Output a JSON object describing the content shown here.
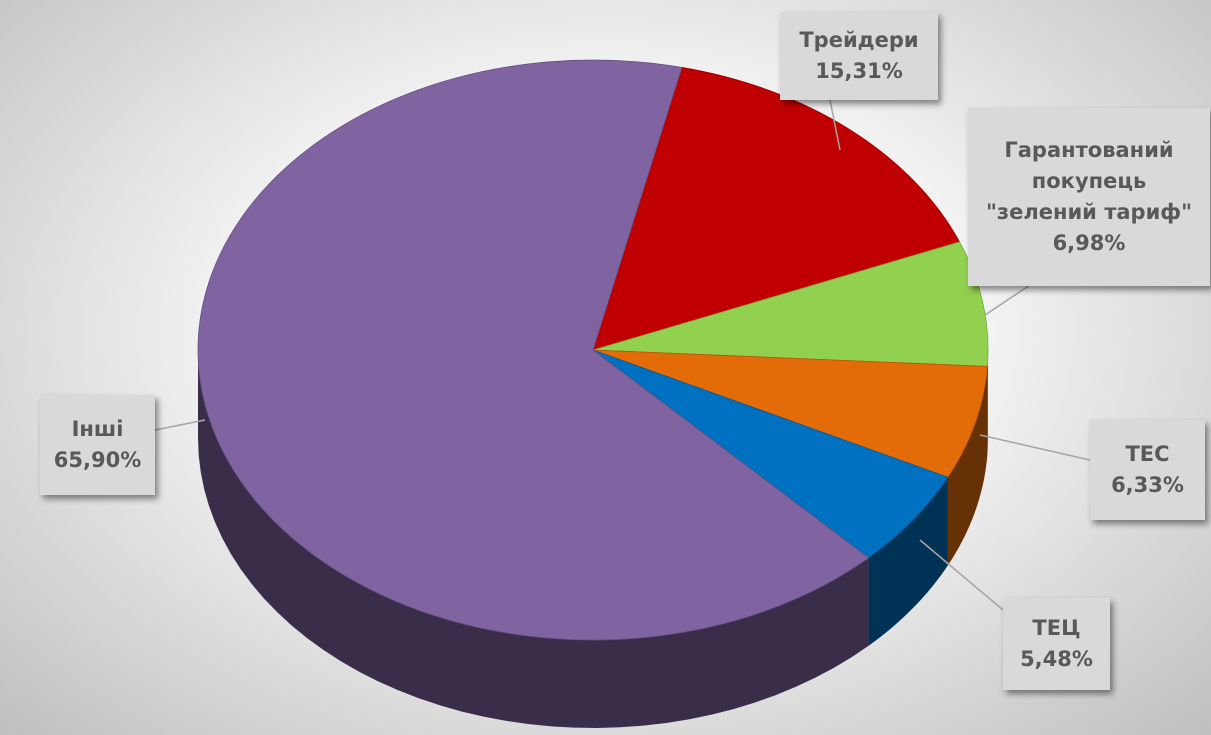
{
  "chart_data": {
    "type": "pie",
    "categories": [
      "Трейдери",
      "Гарантований покупець \"зелений тариф\"",
      "ТЕС",
      "ТЕЦ",
      "Інші"
    ],
    "values": [
      15.31,
      6.98,
      6.33,
      5.48,
      65.9
    ],
    "value_labels": [
      "15,31%",
      "6,98%",
      "6,33%",
      "5,48%",
      "65,90%"
    ],
    "colors": [
      "#c00000",
      "#92d050",
      "#e36c09",
      "#0070c0",
      "#8064a2"
    ]
  }
}
